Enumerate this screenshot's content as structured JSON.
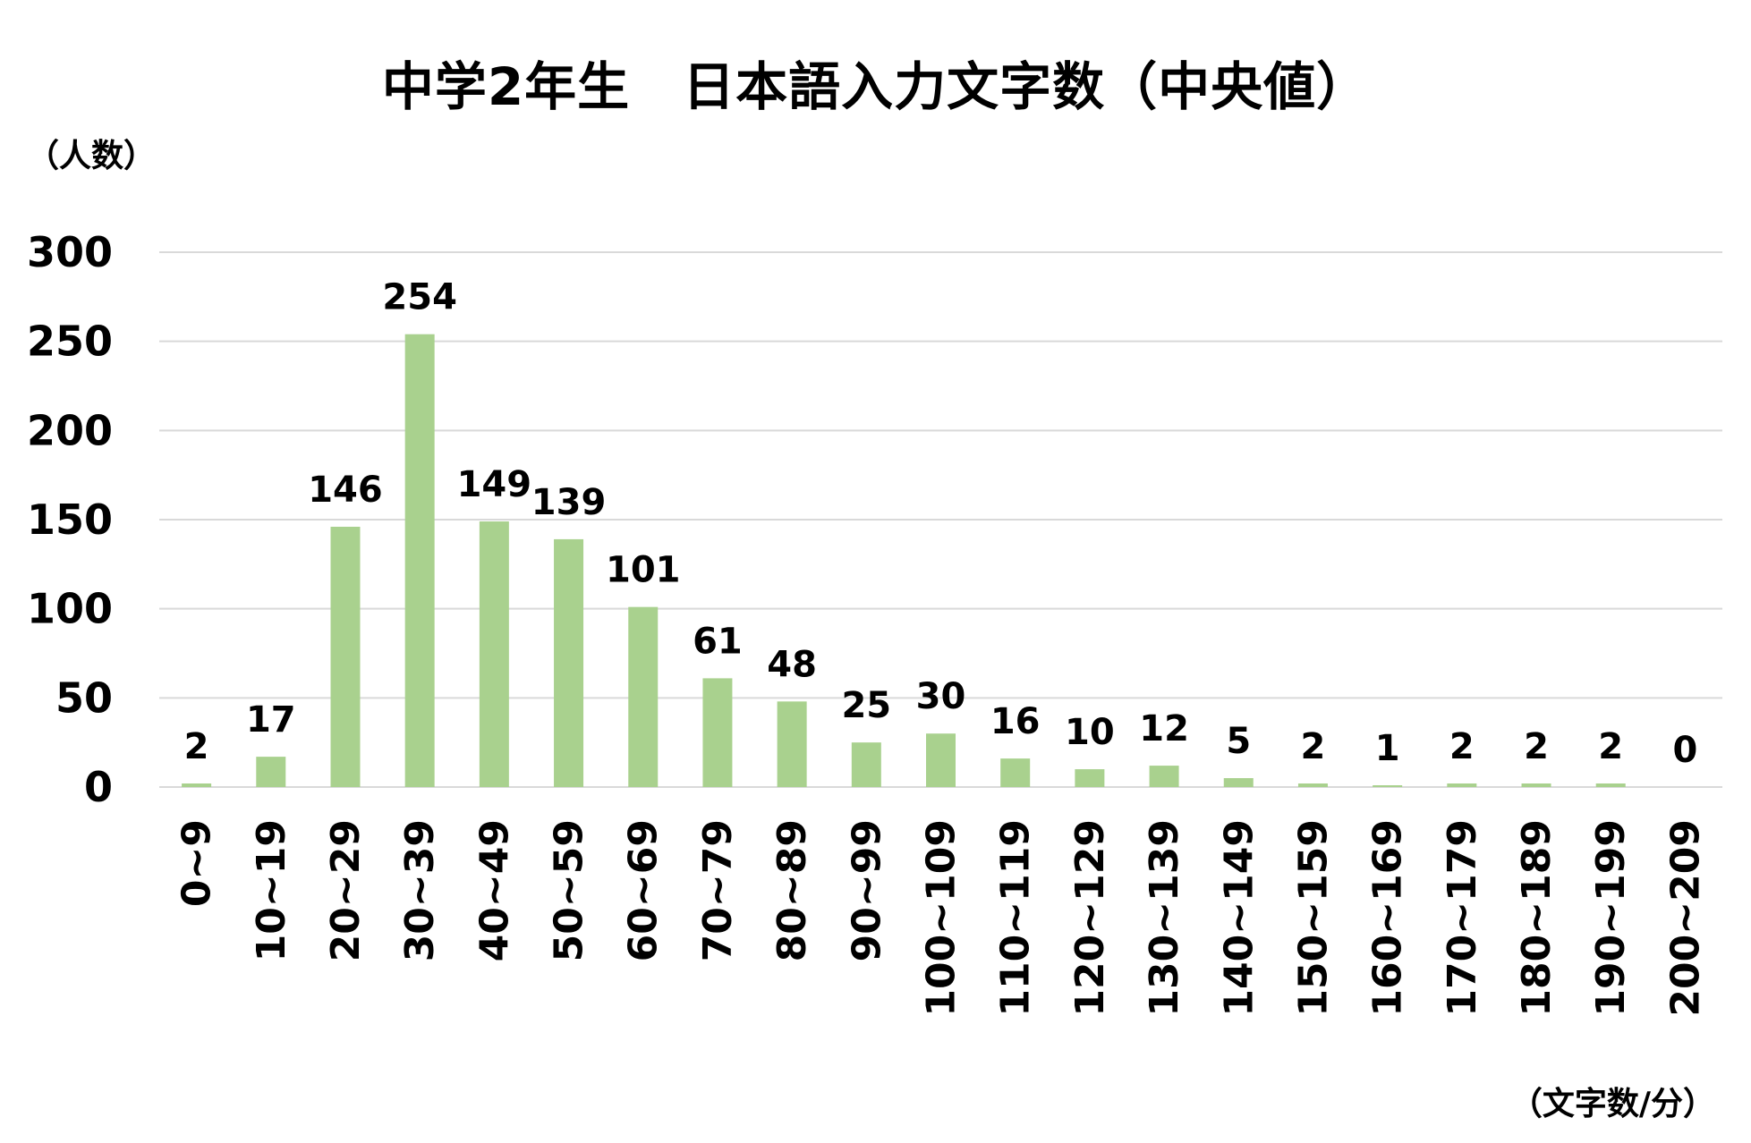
{
  "chart_data": {
    "type": "bar",
    "title": "中学2年生　日本語入力文字数（中央値）",
    "ylabel": "（人数）",
    "xlabel": "（文字数/分）",
    "ylim": [
      0,
      300
    ],
    "yticks": [
      0,
      50,
      100,
      150,
      200,
      250,
      300
    ],
    "grid": true,
    "bar_color": "#a9d18e",
    "grid_color": "#d9d9d9",
    "categories": [
      "0~9",
      "10~19",
      "20~29",
      "30~39",
      "40~49",
      "50~59",
      "60~69",
      "70~79",
      "80~89",
      "90~99",
      "100~109",
      "110~119",
      "120~129",
      "130~139",
      "140~149",
      "150~159",
      "160~169",
      "170~179",
      "180~189",
      "190~199",
      "200~209"
    ],
    "values": [
      2,
      17,
      146,
      254,
      149,
      139,
      101,
      61,
      48,
      25,
      30,
      16,
      10,
      12,
      5,
      2,
      1,
      2,
      2,
      2,
      0
    ]
  }
}
